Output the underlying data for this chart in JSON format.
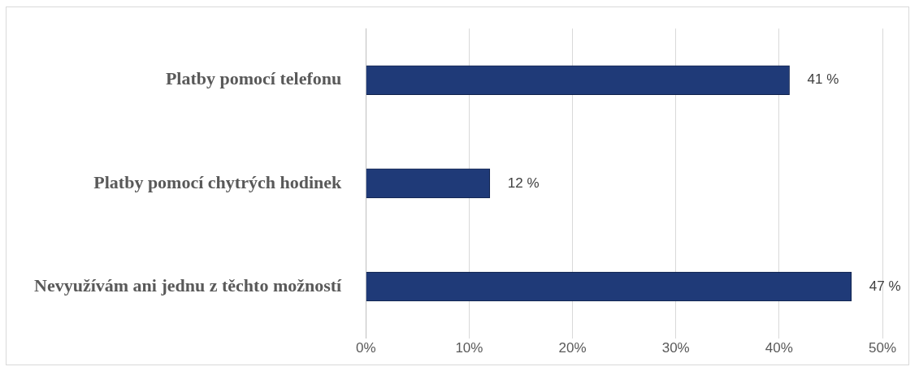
{
  "chart_data": {
    "type": "bar",
    "orientation": "horizontal",
    "categories": [
      "Platby pomocí telefonu",
      "Platby pomocí chytrých hodinek",
      "Nevyužívám ani jednu z těchto možností"
    ],
    "values": [
      41,
      12,
      47
    ],
    "color": "#1f3a78",
    "value_labels": [
      "41 %",
      "12 %",
      "47 %"
    ],
    "xlim": [
      0,
      50
    ],
    "xticks": [
      {
        "value": 0,
        "label": "0%"
      },
      {
        "value": 10,
        "label": "10%"
      },
      {
        "value": 20,
        "label": "20%"
      },
      {
        "value": 30,
        "label": "30%"
      },
      {
        "value": 40,
        "label": "40%"
      },
      {
        "value": 50,
        "label": "50%"
      }
    ],
    "grid": "x",
    "legend": false
  }
}
